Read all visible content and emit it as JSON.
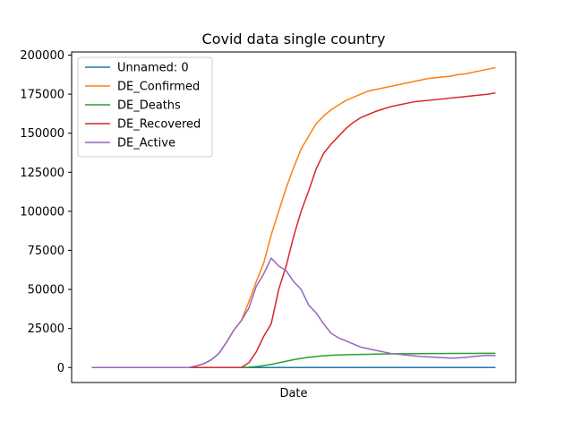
{
  "chart_data": {
    "type": "line",
    "title": "Covid data single country",
    "xlabel": "Date",
    "ylabel": "",
    "ylim": [
      -9600,
      202000
    ],
    "yticks": [
      0,
      25000,
      50000,
      75000,
      100000,
      125000,
      150000,
      175000,
      200000
    ],
    "ytick_labels": [
      "0",
      "25000",
      "50000",
      "75000",
      "100000",
      "125000",
      "150000",
      "175000",
      "200000"
    ],
    "x": [
      0,
      10,
      20,
      30,
      40,
      50,
      55,
      60,
      65,
      70,
      75,
      80,
      85,
      90,
      95,
      100,
      105,
      110,
      115,
      120,
      125,
      130,
      135,
      140,
      145,
      150,
      155,
      160,
      165,
      170,
      175,
      180,
      185,
      190,
      195,
      200,
      205,
      210,
      215,
      220,
      225,
      230,
      235,
      240,
      245,
      250,
      255,
      260,
      265,
      270
    ],
    "xlim": [
      -13.5,
      283.5
    ],
    "grid": false,
    "legend_position": "upper-left",
    "series": [
      {
        "name": "Unnamed: 0",
        "color": "#1f77b4",
        "values": [
          0,
          0,
          0,
          0,
          0,
          0,
          0,
          0,
          0,
          0,
          0,
          0,
          0,
          0,
          0,
          0,
          0,
          0,
          0,
          0,
          0,
          0,
          0,
          0,
          0,
          0,
          0,
          0,
          0,
          0,
          0,
          0,
          0,
          0,
          0,
          0,
          0,
          0,
          0,
          0,
          0,
          0,
          0,
          0,
          0,
          0,
          0,
          0,
          0,
          0
        ]
      },
      {
        "name": "DE_Confirmed",
        "color": "#ff7f0e",
        "values": [
          0,
          0,
          0,
          0,
          0,
          0,
          0,
          0,
          0,
          1000,
          2500,
          5000,
          9000,
          16000,
          24000,
          30000,
          42000,
          55000,
          67000,
          85000,
          100000,
          115000,
          128000,
          140000,
          148000,
          156000,
          161000,
          165000,
          168000,
          171000,
          173000,
          175000,
          177000,
          178000,
          179000,
          180000,
          181000,
          182000,
          183000,
          184000,
          185000,
          185500,
          186000,
          186500,
          187500,
          188000,
          189000,
          190000,
          191000,
          192000
        ]
      },
      {
        "name": "DE_Deaths",
        "color": "#2ca02c",
        "values": [
          0,
          0,
          0,
          0,
          0,
          0,
          0,
          0,
          0,
          0,
          0,
          0,
          0,
          0,
          0,
          0,
          200,
          600,
          1200,
          2000,
          3000,
          4000,
          5000,
          5800,
          6500,
          7000,
          7500,
          7800,
          8000,
          8200,
          8300,
          8400,
          8500,
          8600,
          8700,
          8750,
          8800,
          8850,
          8900,
          8920,
          8940,
          8960,
          8980,
          9000,
          9020,
          9040,
          9060,
          9080,
          9100,
          9100
        ]
      },
      {
        "name": "DE_Recovered",
        "color": "#d62728",
        "values": [
          0,
          0,
          0,
          0,
          0,
          0,
          0,
          0,
          0,
          0,
          0,
          0,
          0,
          0,
          0,
          0,
          3000,
          10000,
          20000,
          28000,
          50000,
          65000,
          84000,
          100000,
          113000,
          127000,
          137000,
          143000,
          148000,
          153000,
          157000,
          160000,
          162000,
          164000,
          165500,
          167000,
          168000,
          169000,
          170000,
          170500,
          171000,
          171500,
          172000,
          172500,
          173000,
          173500,
          174000,
          174500,
          175000,
          175800
        ]
      },
      {
        "name": "DE_Active",
        "color": "#9467bd",
        "values": [
          0,
          0,
          0,
          0,
          0,
          0,
          0,
          0,
          0,
          1000,
          2500,
          5000,
          9000,
          16000,
          24000,
          30000,
          38000,
          52000,
          60000,
          70000,
          65000,
          62000,
          55000,
          50000,
          40000,
          35000,
          28000,
          22000,
          19000,
          17000,
          15000,
          13000,
          12000,
          11000,
          10000,
          9000,
          8500,
          8000,
          7500,
          7000,
          6800,
          6500,
          6300,
          6000,
          6200,
          6500,
          7000,
          7500,
          7800,
          7600
        ]
      }
    ]
  }
}
